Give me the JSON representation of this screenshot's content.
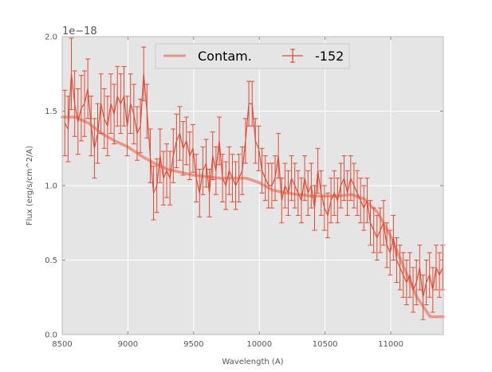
{
  "chart_data": {
    "type": "line",
    "title": "",
    "xlabel": "Wavelength (A)",
    "ylabel": "Flux (erg/s/cm^2/A)",
    "offset_text": "1e−18",
    "xlim": [
      8500,
      11400
    ],
    "ylim": [
      0,
      2.0
    ],
    "xticks": [
      8500,
      9000,
      9500,
      10000,
      10500,
      11000
    ],
    "yticks": [
      0.0,
      0.5,
      1.0,
      1.5,
      2.0
    ],
    "xtick_labels": [
      "8500",
      "9000",
      "9500",
      "10000",
      "10500",
      "11000"
    ],
    "ytick_labels": [
      "0.0",
      "0.5",
      "1.0",
      "1.5",
      "2.0"
    ],
    "grid": true,
    "legend_position": "top-center",
    "colors": {
      "background": "#e5e5e5",
      "grid": "#ffffff",
      "contam": "#e8836f",
      "data": "#e24a33"
    },
    "series": [
      {
        "name": "Contam.",
        "kind": "line",
        "x": [
          8500,
          8600,
          8700,
          8800,
          8900,
          9000,
          9100,
          9200,
          9300,
          9400,
          9500,
          9600,
          9700,
          9800,
          9900,
          10000,
          10100,
          10200,
          10300,
          10400,
          10500,
          10600,
          10700,
          10800,
          10900,
          11000,
          11100,
          11200,
          11300,
          11400
        ],
        "y": [
          1.46,
          1.46,
          1.42,
          1.35,
          1.3,
          1.26,
          1.2,
          1.15,
          1.11,
          1.09,
          1.07,
          1.06,
          1.05,
          1.05,
          1.05,
          1.02,
          0.97,
          0.95,
          0.94,
          0.93,
          0.93,
          0.93,
          0.94,
          0.91,
          0.82,
          0.66,
          0.45,
          0.25,
          0.12,
          0.12
        ]
      },
      {
        "name": "-152",
        "kind": "errorbar",
        "x": [
          8520,
          8545,
          8570,
          8595,
          8620,
          8645,
          8670,
          8695,
          8720,
          8745,
          8770,
          8795,
          8820,
          8845,
          8870,
          8895,
          8920,
          8945,
          8970,
          8995,
          9020,
          9045,
          9070,
          9095,
          9120,
          9145,
          9170,
          9195,
          9220,
          9245,
          9270,
          9295,
          9320,
          9345,
          9370,
          9395,
          9420,
          9445,
          9470,
          9495,
          9520,
          9545,
          9570,
          9595,
          9620,
          9645,
          9670,
          9695,
          9720,
          9745,
          9770,
          9795,
          9820,
          9845,
          9870,
          9895,
          9920,
          9945,
          9970,
          9995,
          10020,
          10045,
          10070,
          10095,
          10120,
          10145,
          10170,
          10195,
          10220,
          10245,
          10270,
          10295,
          10320,
          10345,
          10370,
          10395,
          10420,
          10445,
          10470,
          10495,
          10520,
          10545,
          10570,
          10595,
          10620,
          10645,
          10670,
          10695,
          10720,
          10745,
          10770,
          10795,
          10820,
          10845,
          10870,
          10895,
          10920,
          10945,
          10970,
          10995,
          11020,
          11045,
          11070,
          11095,
          11120,
          11145,
          11170,
          11195,
          11220,
          11245,
          11270,
          11295,
          11320,
          11345,
          11370,
          11395
        ],
        "y": [
          1.42,
          1.38,
          1.75,
          1.55,
          1.43,
          1.52,
          1.55,
          1.65,
          1.4,
          1.25,
          1.35,
          1.55,
          1.45,
          1.4,
          1.55,
          1.48,
          1.6,
          1.55,
          1.6,
          1.4,
          1.55,
          1.48,
          1.35,
          1.4,
          1.75,
          1.5,
          1.2,
          0.95,
          1.0,
          1.2,
          1.05,
          1.1,
          1.05,
          1.2,
          1.3,
          1.35,
          1.25,
          1.3,
          1.2,
          1.25,
          1.05,
          0.95,
          1.1,
          1.15,
          0.95,
          1.2,
          1.1,
          1.3,
          1.05,
          1.0,
          1.1,
          1.05,
          1.0,
          1.05,
          1.1,
          1.3,
          1.55,
          1.55,
          1.3,
          1.25,
          1.1,
          1.05,
          1.0,
          1.0,
          1.05,
          1.2,
          0.9,
          1.0,
          0.95,
          1.05,
          1.0,
          0.95,
          0.9,
          1.05,
          0.95,
          1.0,
          0.85,
          1.1,
          0.95,
          0.85,
          0.8,
          0.9,
          0.95,
          0.9,
          1.0,
          1.05,
          0.95,
          1.05,
          1.0,
          0.95,
          0.9,
          0.85,
          0.9,
          0.75,
          0.7,
          0.65,
          0.7,
          0.75,
          0.6,
          0.55,
          0.65,
          0.5,
          0.45,
          0.4,
          0.35,
          0.4,
          0.3,
          0.35,
          0.45,
          0.25,
          0.35,
          0.4,
          0.3,
          0.45,
          0.4,
          0.45
        ],
        "yerr": [
          0.22,
          0.22,
          0.24,
          0.22,
          0.22,
          0.22,
          0.22,
          0.2,
          0.2,
          0.2,
          0.2,
          0.2,
          0.2,
          0.2,
          0.2,
          0.2,
          0.2,
          0.2,
          0.2,
          0.2,
          0.2,
          0.2,
          0.18,
          0.18,
          0.18,
          0.18,
          0.18,
          0.18,
          0.18,
          0.18,
          0.18,
          0.18,
          0.18,
          0.18,
          0.18,
          0.18,
          0.18,
          0.16,
          0.16,
          0.16,
          0.16,
          0.16,
          0.16,
          0.16,
          0.16,
          0.16,
          0.16,
          0.16,
          0.16,
          0.16,
          0.16,
          0.16,
          0.16,
          0.16,
          0.16,
          0.15,
          0.15,
          0.15,
          0.15,
          0.15,
          0.15,
          0.15,
          0.15,
          0.15,
          0.15,
          0.15,
          0.15,
          0.15,
          0.15,
          0.15,
          0.15,
          0.15,
          0.15,
          0.15,
          0.15,
          0.15,
          0.15,
          0.15,
          0.15,
          0.15,
          0.15,
          0.15,
          0.15,
          0.15,
          0.15,
          0.15,
          0.15,
          0.15,
          0.15,
          0.15,
          0.15,
          0.15,
          0.15,
          0.15,
          0.15,
          0.15,
          0.15,
          0.15,
          0.15,
          0.15,
          0.15,
          0.15,
          0.15,
          0.15,
          0.15,
          0.15,
          0.15,
          0.15,
          0.15,
          0.15,
          0.15,
          0.15,
          0.15,
          0.15,
          0.15,
          0.15
        ]
      }
    ]
  }
}
